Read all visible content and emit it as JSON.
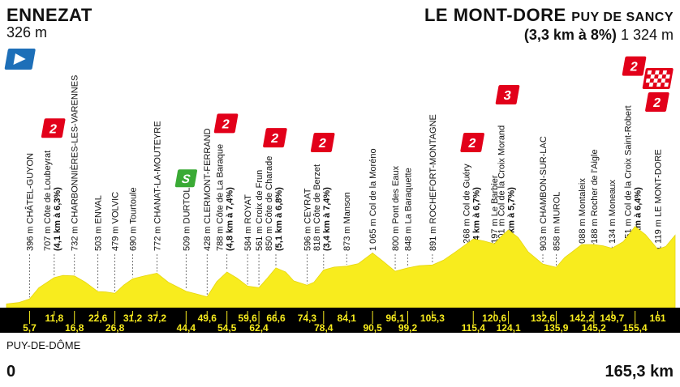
{
  "start": {
    "name": "ENNEZAT",
    "altitude": "326 m"
  },
  "finish": {
    "name": "LE MONT-DORE",
    "sub": "PUY DE SANCY",
    "climb": "(3,3 km à 8%)",
    "altitude": "1 324 m"
  },
  "region": "PUY-DE-DÔME",
  "distance_start": "0",
  "distance_end": "165,3 km",
  "colors": {
    "profile": "#f8ec1e",
    "band": "#000000",
    "cat_climb": "#e2001a",
    "sprint": "#3aaa35",
    "start_flag": "#1d6fb8",
    "km_text": "#f8ec1e"
  },
  "icons": {
    "start": "start-flag-icon",
    "finish": "finish-flag-icon",
    "sprint": "sprint-icon",
    "climb": "climb-category-icon"
  },
  "chart_data": {
    "type": "area",
    "title": "",
    "xlabel": "",
    "ylabel": "",
    "xlim": [
      0,
      165.3
    ],
    "ylim": [
      300,
      1600
    ],
    "profile_x": [
      0,
      3,
      5.7,
      8,
      11.8,
      14,
      16.8,
      19.5,
      22.6,
      24.5,
      26.8,
      29,
      31.2,
      34,
      37.2,
      40,
      44.4,
      47,
      49.6,
      52,
      54.5,
      57,
      59.6,
      62.4,
      64.5,
      66.6,
      69,
      71,
      74.3,
      76,
      78.4,
      81,
      84.1,
      87,
      90.5,
      93,
      96.1,
      99.2,
      102,
      105.3,
      108,
      111,
      115.4,
      118,
      120.6,
      122,
      124.1,
      126.5,
      129,
      132.6,
      135.9,
      138,
      140,
      142.2,
      145.2,
      147.5,
      149.7,
      152.5,
      155.4,
      158,
      161,
      163,
      165.3
    ],
    "profile_y": [
      326,
      345,
      396,
      560,
      707,
      740,
      732,
      640,
      503,
      500,
      479,
      600,
      690,
      730,
      772,
      640,
      509,
      470,
      428,
      650,
      788,
      700,
      584,
      561,
      700,
      850,
      790,
      660,
      596,
      640,
      818,
      860,
      873,
      910,
      1065,
      950,
      800,
      848,
      880,
      891,
      960,
      1080,
      1268,
      1240,
      1197,
      1290,
      1401,
      1290,
      1080,
      903,
      858,
      1000,
      1088,
      1188,
      1188,
      1170,
      1134,
      1230,
      1451,
      1330,
      1119,
      1160,
      1324
    ],
    "series": [],
    "waypoints": [
      {
        "km": 5.7,
        "altitude": 396,
        "name": "CHÂTEL-GUYON"
      },
      {
        "km": 11.8,
        "altitude": 707,
        "name": "Côte de Loubeyrat",
        "detail": "(4,1 km à 6,3%)",
        "category": "2"
      },
      {
        "km": 16.8,
        "altitude": 732,
        "name": "CHARBONNIÈRES-LES-VARENNES"
      },
      {
        "km": 22.6,
        "altitude": 503,
        "name": "ENVAL"
      },
      {
        "km": 26.8,
        "altitude": 479,
        "name": "VOLVIC"
      },
      {
        "km": 31.2,
        "altitude": 690,
        "name": "Tourtoule"
      },
      {
        "km": 37.2,
        "altitude": 772,
        "name": "CHANAT-LA-MOUTEYRE"
      },
      {
        "km": 44.4,
        "altitude": 509,
        "name": "DURTOL",
        "sprint": true
      },
      {
        "km": 49.6,
        "altitude": 428,
        "name": "CLERMONT-FERRAND"
      },
      {
        "km": 54.5,
        "altitude": 788,
        "name": "Côte de La Baraque",
        "detail": "(4,8 km à 7,4%)",
        "category": "2"
      },
      {
        "km": 59.6,
        "altitude": 584,
        "name": "ROYAT"
      },
      {
        "km": 62.4,
        "altitude": 561,
        "name": "Croix de Frun"
      },
      {
        "km": 66.6,
        "altitude": 850,
        "name": "Côte de Charade",
        "detail": "(5,1 km à 6,8%)",
        "category": "2"
      },
      {
        "km": 74.3,
        "altitude": 596,
        "name": "CEYRAT"
      },
      {
        "km": 78.4,
        "altitude": 818,
        "name": "Côte de Berzet",
        "detail": "(3,4 km à 7,4%)",
        "category": "2"
      },
      {
        "km": 84.1,
        "altitude": 873,
        "name": "Manson"
      },
      {
        "km": 90.5,
        "altitude": 1065,
        "name": "Col de la Moréno"
      },
      {
        "km": 96.1,
        "altitude": 800,
        "name": "Pont des Eaux"
      },
      {
        "km": 99.2,
        "altitude": 848,
        "name": "La Baraquette"
      },
      {
        "km": 105.3,
        "altitude": 891,
        "name": "ROCHEFORT-MONTAGNE"
      },
      {
        "km": 115.4,
        "altitude": 1268,
        "name": "Col de Guéry",
        "detail": "(3,4 km à 6,7%)",
        "category": "2"
      },
      {
        "km": 120.6,
        "altitude": 1197,
        "name": "Le Barbier"
      },
      {
        "km": 124.1,
        "altitude": 1401,
        "name": "Col de la Croix Morand",
        "detail": "(3,4 km à 5,7%)",
        "category": "3"
      },
      {
        "km": 132.6,
        "altitude": 903,
        "name": "CHAMBON-SUR-LAC"
      },
      {
        "km": 135.9,
        "altitude": 858,
        "name": "MUROL"
      },
      {
        "km": 142.2,
        "altitude": 1088,
        "name": "Montaleix"
      },
      {
        "km": 145.2,
        "altitude": 1188,
        "name": "Rocher de l'Aigle"
      },
      {
        "km": 149.7,
        "altitude": 1134,
        "name": "Moneaux"
      },
      {
        "km": 155.4,
        "altitude": 1451,
        "name": "Col de la Croix Saint-Robert",
        "detail": "(5,1 km à 6,4%)",
        "category": "2"
      },
      {
        "km": 161,
        "altitude": 1119,
        "name": "LE MONT-DORE"
      }
    ],
    "km_top": [
      "11,8",
      "22,6",
      "31,2",
      "37,2",
      "49,6",
      "59,6",
      "66,6",
      "74,3",
      "84,1",
      "96,1",
      "105,3",
      "120,6",
      "132,6",
      "142,2",
      "149,7",
      "161"
    ],
    "km_bottom": [
      "5,7",
      "16,8",
      "26,8",
      "44,4",
      "54,5",
      "62,4",
      "78,4",
      "90,5",
      "99,2",
      "115,4",
      "124,1",
      "135,9",
      "145,2",
      "155,4"
    ]
  }
}
